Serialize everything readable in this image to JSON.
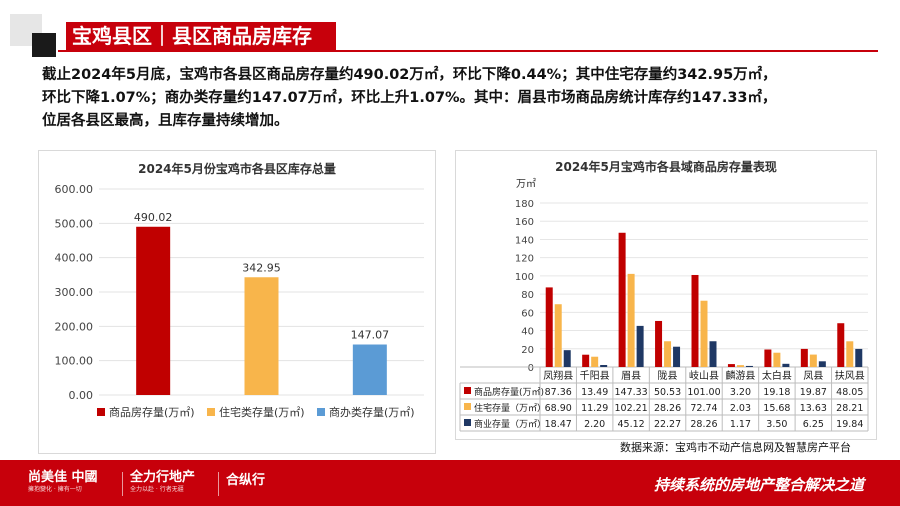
{
  "header": {
    "title": "宝鸡县区｜县区商品房库存"
  },
  "intro": {
    "line1": "截止2024年5月底，宝鸡市各县区商品房存量约490.02万㎡，环比下降0.44%；其中住宅存量约342.95万㎡，",
    "line2": "环比下降1.07%；商办类存量约147.07万㎡，环比上升1.07%。其中：眉县市场商品房统计库存约147.33㎡，",
    "line3": "位居各县区最高，且库存量持续增加。"
  },
  "colors": {
    "brand_red": "#c7000b",
    "commercial": "#c00000",
    "residential": "#f8b54b",
    "office": "#5b9bd5",
    "office_dark": "#1f3864"
  },
  "chart_data": [
    {
      "type": "bar",
      "title": "2024年5月份宝鸡市各县区库存总量",
      "categories": [
        "商品房存量(万㎡)",
        "住宅类存量(万㎡)",
        "商办类存量(万㎡)"
      ],
      "values": [
        490.02,
        342.95,
        147.07
      ],
      "value_labels": [
        "490.02",
        "342.95",
        "147.07"
      ],
      "colors": [
        "#c00000",
        "#f8b54b",
        "#5b9bd5"
      ],
      "yticks": [
        "0.00",
        "100.00",
        "200.00",
        "300.00",
        "400.00",
        "500.00",
        "600.00"
      ],
      "ylim": [
        0,
        600
      ],
      "grid": true,
      "legend_position": "bottom"
    },
    {
      "type": "bar",
      "title": "2024年5月宝鸡市各县域商品房存量表现",
      "ylabel": "万㎡",
      "ylim": [
        0,
        180
      ],
      "yticks": [
        "0",
        "20",
        "40",
        "60",
        "80",
        "100",
        "120",
        "140",
        "160",
        "180"
      ],
      "grid": true,
      "categories": [
        "凤翔县",
        "千阳县",
        "眉县",
        "陇县",
        "岐山县",
        "麟游县",
        "太白县",
        "凤县",
        "扶风县"
      ],
      "series": [
        {
          "name": "商品房存量(万㎡)",
          "color": "#c00000",
          "values": [
            87.36,
            13.49,
            147.33,
            50.53,
            101.0,
            3.2,
            19.18,
            19.87,
            48.05
          ],
          "labels": [
            "87.36",
            "13.49",
            "147.33",
            "50.53",
            "101.00",
            "3.20",
            "19.18",
            "19.87",
            "48.05"
          ]
        },
        {
          "name": "住宅存量（万㎡）",
          "color": "#f8b54b",
          "values": [
            68.9,
            11.29,
            102.21,
            28.26,
            72.74,
            2.03,
            15.68,
            13.63,
            28.21
          ],
          "labels": [
            "68.90",
            "11.29",
            "102.21",
            "28.26",
            "72.74",
            "2.03",
            "15.68",
            "13.63",
            "28.21"
          ]
        },
        {
          "name": "商业存量（万㎡）",
          "color": "#1f3864",
          "values": [
            18.47,
            2.2,
            45.12,
            22.27,
            28.26,
            1.17,
            3.5,
            6.25,
            19.84
          ],
          "labels": [
            "18.47",
            "2.20",
            "45.12",
            "22.27",
            "28.26",
            "1.17",
            "3.50",
            "6.25",
            "19.84"
          ]
        }
      ],
      "legend_position": "data-table"
    }
  ],
  "source": "数据来源：宝鸡市不动产信息网及智慧房产平台",
  "footer": {
    "logo1": "尚美佳",
    "logo1_suffix": "中國",
    "logo1_tag": "擁抱變化 · 擁有一切",
    "logo2": "全力行地产",
    "logo2_tag": "全力以赴 · 行者无疆",
    "logo3": "合纵行",
    "slogan": "持续系统的房地产整合解决之道"
  }
}
